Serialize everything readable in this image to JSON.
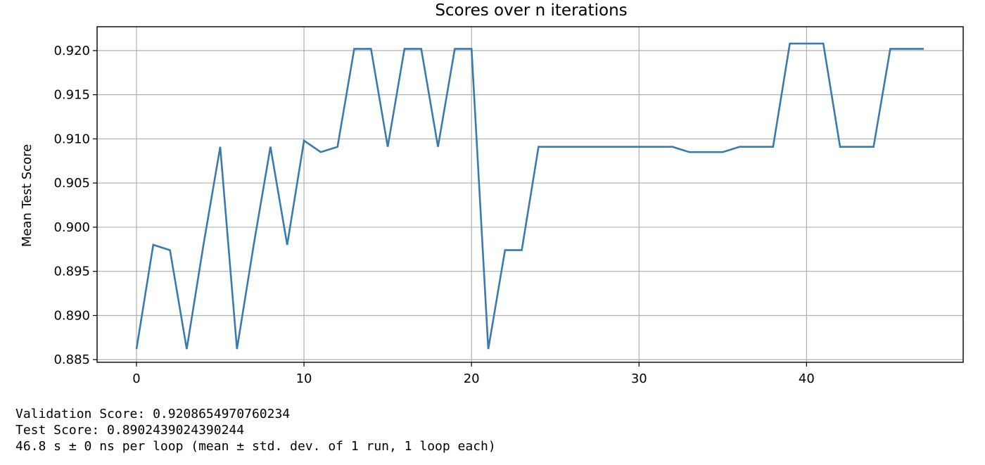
{
  "chart_data": {
    "type": "line",
    "title": "Scores over n iterations",
    "xlabel": "",
    "ylabel": "Mean Test Score",
    "xlim": [
      -2.35,
      49.35
    ],
    "ylim": [
      0.8847,
      0.9227
    ],
    "grid": true,
    "xticks": [
      0,
      10,
      20,
      30,
      40
    ],
    "xtick_labels": [
      "0",
      "10",
      "20",
      "30",
      "40"
    ],
    "yticks": [
      0.885,
      0.89,
      0.895,
      0.9,
      0.905,
      0.91,
      0.915,
      0.92
    ],
    "ytick_labels": [
      "0.885",
      "0.890",
      "0.895",
      "0.900",
      "0.905",
      "0.910",
      "0.915",
      "0.920"
    ],
    "color": "#3b7aad",
    "x": [
      0,
      1,
      2,
      3,
      4,
      5,
      6,
      7,
      8,
      9,
      10,
      11,
      12,
      13,
      14,
      15,
      16,
      17,
      18,
      19,
      20,
      21,
      22,
      23,
      24,
      25,
      26,
      27,
      28,
      29,
      30,
      31,
      32,
      33,
      34,
      35,
      36,
      37,
      38,
      39,
      40,
      41,
      42,
      43,
      44,
      45,
      46,
      47
    ],
    "values": [
      0.8862,
      0.898,
      0.8974,
      0.8862,
      0.898,
      0.9091,
      0.8862,
      0.898,
      0.9091,
      0.898,
      0.9098,
      0.9085,
      0.9091,
      0.9202,
      0.9202,
      0.9091,
      0.9202,
      0.9202,
      0.9091,
      0.9202,
      0.9202,
      0.8862,
      0.8974,
      0.8974,
      0.9091,
      0.9091,
      0.9091,
      0.9091,
      0.9091,
      0.9091,
      0.9091,
      0.9091,
      0.9091,
      0.9085,
      0.9085,
      0.9085,
      0.9091,
      0.9091,
      0.9091,
      0.9208,
      0.9208,
      0.9208,
      0.9091,
      0.9091,
      0.9091,
      0.9202,
      0.9202,
      0.9202
    ]
  },
  "output": {
    "validation_line": "Validation Score: 0.9208654970760234",
    "test_line": "Test Score: 0.8902439024390244",
    "timing_line": "46.8 s ± 0 ns per loop (mean ± std. dev. of 1 run, 1 loop each)"
  }
}
